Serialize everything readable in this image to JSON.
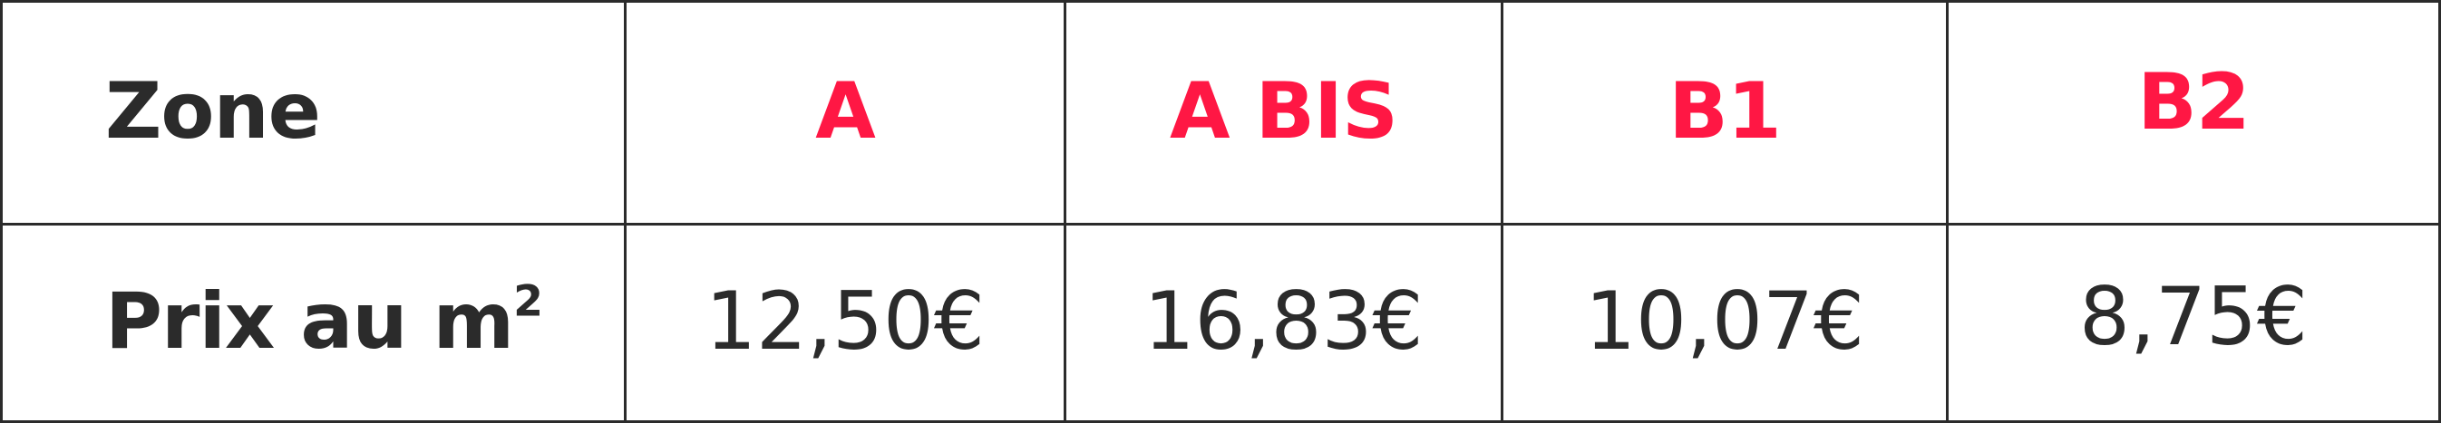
{
  "table": {
    "header_row": {
      "label": "Zone",
      "zones": [
        "A",
        "A BIS",
        "B1",
        "B2"
      ]
    },
    "price_row": {
      "label": "Prix au m",
      "label_superscript": "2",
      "prices": [
        "12,50€",
        "16,83€",
        "10,07€",
        "8,75€"
      ]
    }
  },
  "colors": {
    "zone_accent": "#ff1744",
    "text_dark": "#2b2b2b",
    "border": "#2b2b2b",
    "background": "#ffffff"
  }
}
